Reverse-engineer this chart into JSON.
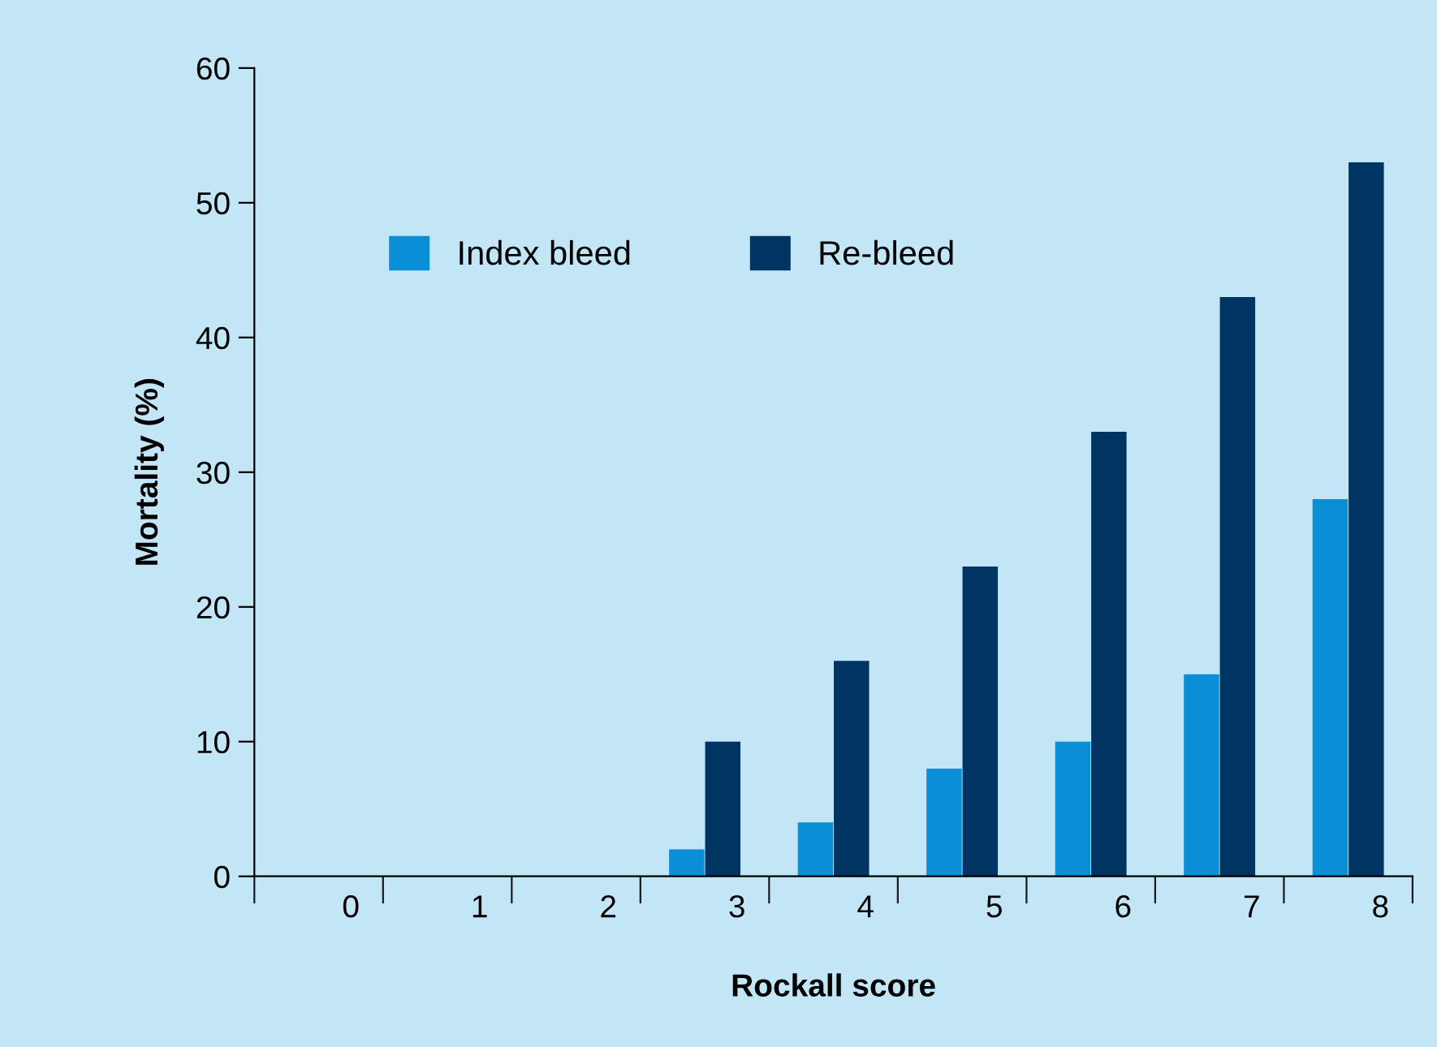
{
  "chart_data": {
    "type": "bar",
    "xlabel": "Rockall score",
    "ylabel": "Mortality (%)",
    "categories": [
      "0",
      "1",
      "2",
      "3",
      "4",
      "5",
      "6",
      "7",
      "8"
    ],
    "series": [
      {
        "name": "Index bleed",
        "color": "#0a8fd6",
        "values": [
          null,
          null,
          null,
          2,
          4,
          8,
          10,
          15,
          28
        ]
      },
      {
        "name": "Re-bleed",
        "color": "#003462",
        "values": [
          null,
          null,
          null,
          10,
          16,
          23,
          33,
          43,
          53
        ]
      }
    ],
    "ylim": [
      0,
      60
    ],
    "yticks": [
      0,
      10,
      20,
      30,
      40,
      50,
      60
    ],
    "grid": false,
    "legend": "top left"
  }
}
